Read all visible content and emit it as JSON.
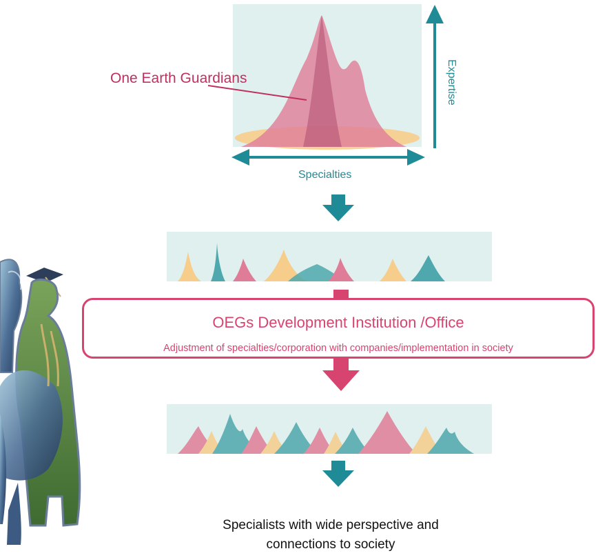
{
  "diagram": {
    "top_label": "One Earth Guardians",
    "x_axis_label": "Specialties",
    "y_axis_label": "Expertise",
    "institution_title": "OEGs Development Institution /Office",
    "institution_subtitle": "Adjustment of specialties/corporation with companies/implementation in society",
    "final_text_line1": "Specialists with wide perspective and",
    "final_text_line2": "connections to society"
  },
  "colors": {
    "teal": "#1f8b96",
    "pink": "#d6446f",
    "panel_bg": "#dff0ee",
    "peak_yellow": "#f7cd8c",
    "peak_teal": "#4fa8ad",
    "peak_pink": "#df7d98"
  }
}
